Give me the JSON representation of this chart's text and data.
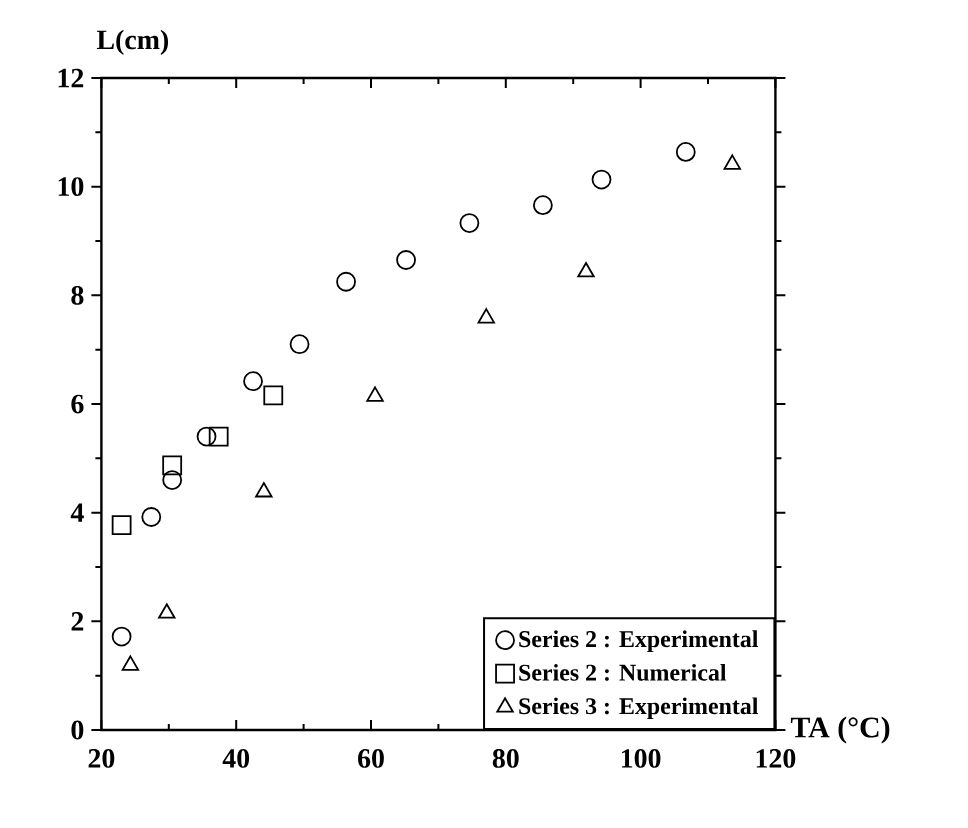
{
  "chart_data": {
    "type": "scatter",
    "xlabel": "TA (°C)",
    "ylabel": "L(cm)",
    "xlim": [
      20,
      120
    ],
    "xticks": [
      20,
      40,
      60,
      80,
      100,
      120
    ],
    "ylim": [
      0,
      12
    ],
    "yticks": [
      0,
      2,
      4,
      6,
      8,
      10,
      12
    ],
    "grid": false,
    "legend": "bottom right",
    "series": [
      {
        "name": "Series 2 : Experimental",
        "color": "#000000",
        "marker": "circle",
        "x": [
          23,
          27.4,
          30.5,
          35.6,
          42.5,
          49.4,
          56.3,
          65.2,
          74.6,
          85.5,
          94.2,
          106.7
        ],
        "values": [
          1.72,
          3.92,
          4.6,
          5.4,
          6.42,
          7.1,
          8.25,
          8.65,
          9.33,
          9.66,
          10.13,
          10.64
        ]
      },
      {
        "name": "Series 2 : Numerical",
        "color": "#000000",
        "marker": "square",
        "x": [
          23,
          30.5,
          37.4,
          45.5
        ],
        "values": [
          3.77,
          4.87,
          5.4,
          6.16
        ]
      },
      {
        "name": "Series 3 : Experimental",
        "color": "#000000",
        "marker": "triangle",
        "x": [
          24.3,
          29.7,
          44.1,
          60.6,
          77.1,
          91.9,
          113.6
        ],
        "values": [
          1.19,
          2.15,
          4.38,
          6.14,
          7.58,
          8.43,
          10.41
        ]
      }
    ]
  }
}
